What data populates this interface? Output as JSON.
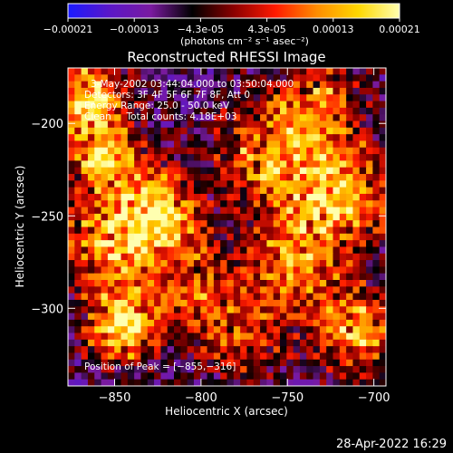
{
  "colorbar": {
    "ticks": [
      "-0.00021",
      "-0.00013",
      "-4.3e-05",
      "4.3e-05",
      "0.00013",
      "0.00021"
    ],
    "unit_label": "(photons cm⁻² s⁻¹ asec⁻²)",
    "colors": [
      "#1a1aff",
      "#5a17c8",
      "#7a1aa0",
      "#000000",
      "#8b0000",
      "#ff1a00",
      "#ff8c00",
      "#ffd700",
      "#ffffb0"
    ]
  },
  "chart_data": {
    "type": "heatmap",
    "title": "Reconstructed RHESSI Image",
    "xlabel": "Heliocentric X (arcsec)",
    "ylabel": "Heliocentric Y (arcsec)",
    "xlim": [
      -877,
      -693
    ],
    "ylim": [
      -342,
      -170
    ],
    "xticks": [
      -850,
      -800,
      -750,
      -700
    ],
    "yticks": [
      -200,
      -250,
      -300
    ],
    "xtick_labels": [
      "−850",
      "−800",
      "−750",
      "−700"
    ],
    "ytick_labels": [
      "−200",
      "−250",
      "−300"
    ],
    "annotations": [
      "3-May-2002 03:44:04.000 to 03:50:04.000",
      "Detectors: 3F 4F 5F 6F 7F 8F, Att 0",
      "Energy Range: 25.0 - 50.0 keV",
      "Clean     Total counts: 4.18E+03"
    ],
    "peak_text": "Position of Peak = [−855,−316]",
    "peak": [
      -855,
      -316
    ],
    "grid": false
  },
  "footer": {
    "timestamp": "28-Apr-2022 16:29"
  }
}
